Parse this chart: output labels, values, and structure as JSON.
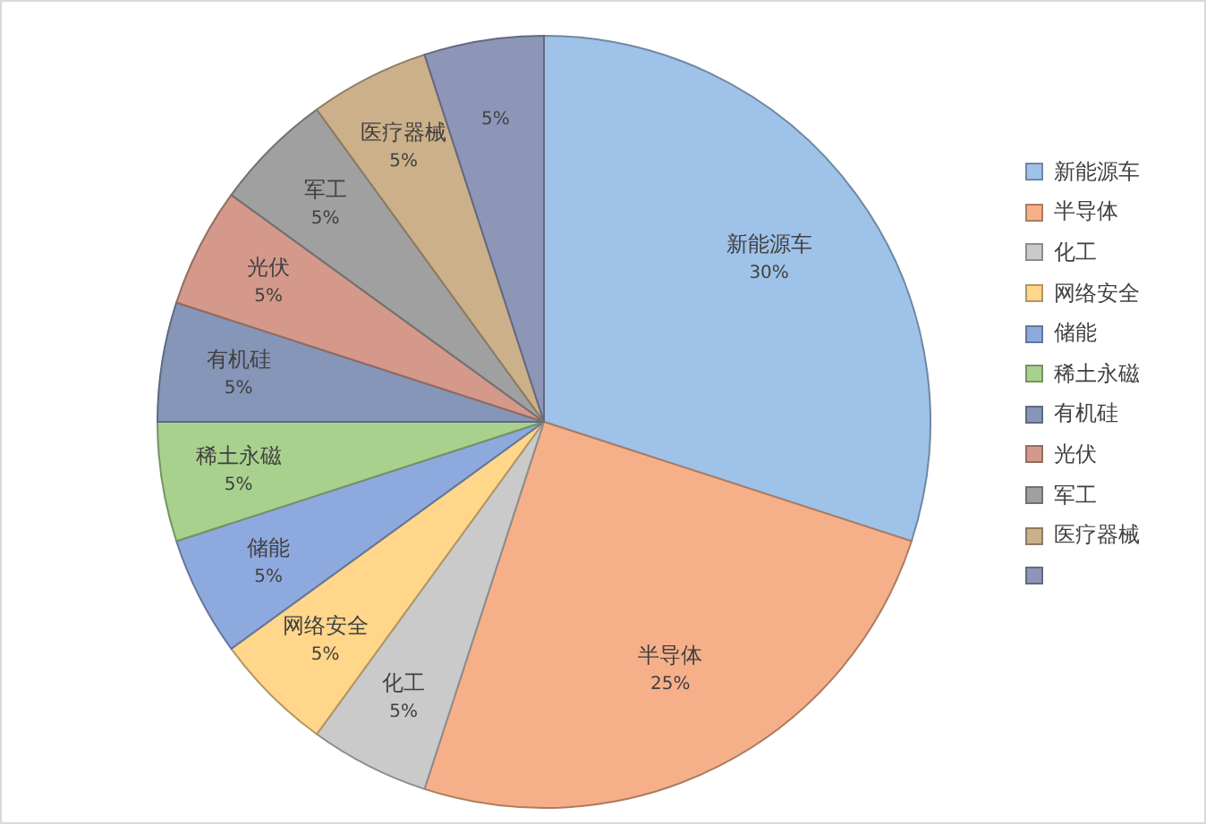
{
  "chart_data": {
    "type": "pie",
    "categories": [
      "新能源车",
      "半导体",
      "化工",
      "网络安全",
      "储能",
      "稀土永磁",
      "有机硅",
      "光伏",
      "军工",
      "医疗器械",
      null
    ],
    "values": [
      30,
      25,
      5,
      5,
      5,
      5,
      5,
      5,
      5,
      5,
      5
    ],
    "value_labels": [
      "30%",
      "25%",
      "5%",
      "5%",
      "5%",
      "5%",
      "5%",
      "5%",
      "5%",
      "5%",
      "5%"
    ],
    "colors": [
      "#9fc2e8",
      "#f5b08a",
      "#cacaca",
      "#ffd68a",
      "#8ea9de",
      "#a9d18e",
      "#8596b8",
      "#d4998a",
      "#a0a0a0",
      "#cbb08a",
      "#8e96b8"
    ],
    "legend": "right"
  }
}
